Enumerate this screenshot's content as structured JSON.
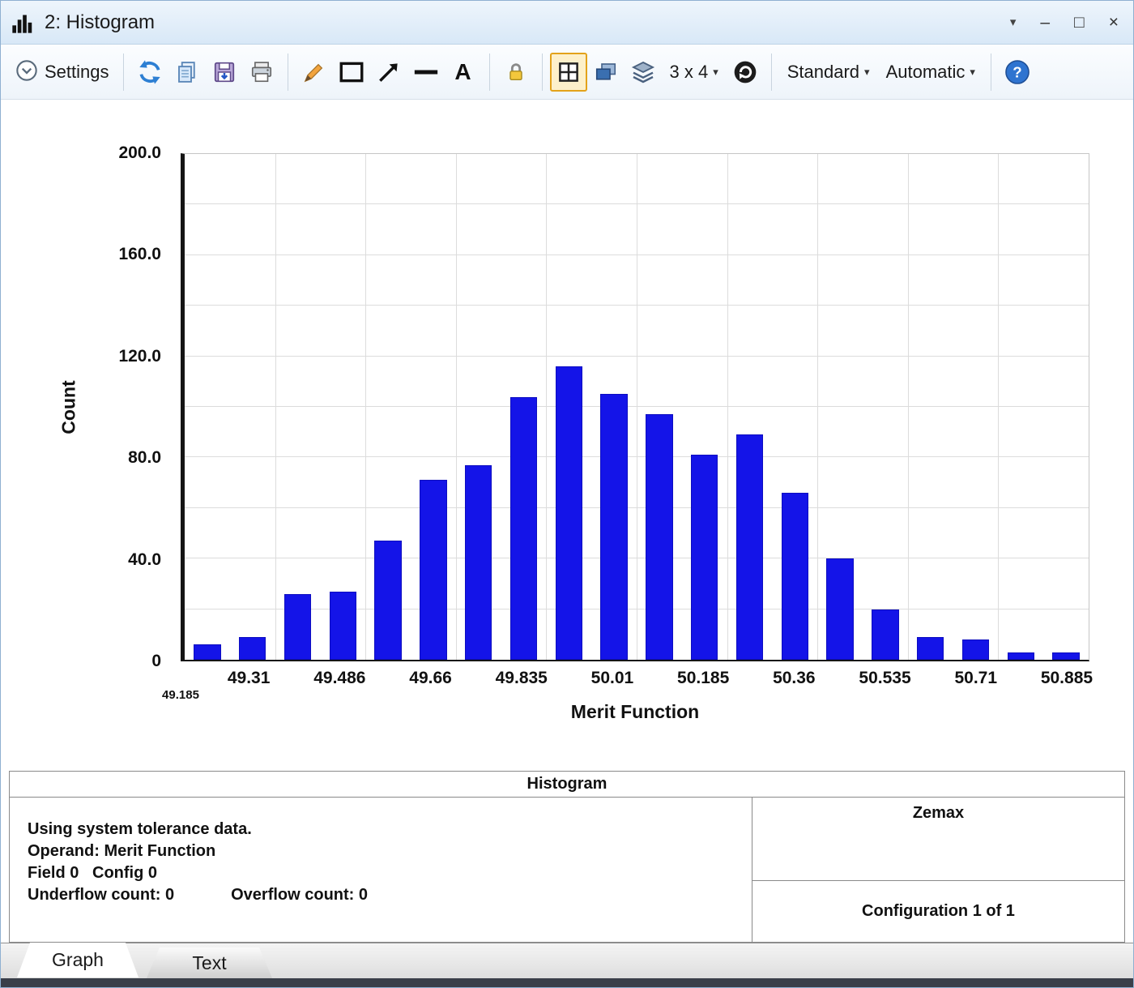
{
  "window": {
    "title": "2: Histogram",
    "caret": "▾",
    "minimize": "–",
    "maximize": "□",
    "close": "×"
  },
  "toolbar": {
    "settings": "Settings",
    "text_tool": "A",
    "grid_size": "3 x 4",
    "standard": "Standard",
    "automatic": "Automatic",
    "help": "?",
    "caret": "▾"
  },
  "chart_data": {
    "type": "bar",
    "title": "Histogram",
    "xlabel": "Merit Function",
    "ylabel": "Count",
    "ylim": [
      0,
      200
    ],
    "grid_step": 20,
    "x_start": 49.185,
    "x_start_label": "49.185",
    "bin_width": 0.0875,
    "xtick_labels": [
      "49.31",
      "49.486",
      "49.66",
      "49.835",
      "50.01",
      "50.185",
      "50.36",
      "50.535",
      "50.71",
      "50.885"
    ],
    "ytick_values": [
      0,
      40,
      80,
      120,
      160,
      200
    ],
    "ytick_labels": [
      "0",
      "40.0",
      "80.0",
      "120.0",
      "160.0",
      "200.0"
    ],
    "values": [
      6,
      9,
      26,
      27,
      47,
      71,
      77,
      104,
      116,
      105,
      97,
      81,
      89,
      66,
      40,
      20,
      9,
      8,
      3,
      3
    ]
  },
  "info_panel": {
    "title": "Histogram",
    "line1": "Using system tolerance data.",
    "line2": "Operand: Merit Function",
    "line3": "Field 0   Config 0",
    "underflow": "Underflow count: 0",
    "overflow": "Overflow count: 0",
    "brand": "Zemax",
    "configuration": "Configuration 1 of 1"
  },
  "tabs": {
    "graph": "Graph",
    "text": "Text"
  },
  "colors": {
    "bar": "#1414e8",
    "highlight_border": "#e3a21a"
  }
}
